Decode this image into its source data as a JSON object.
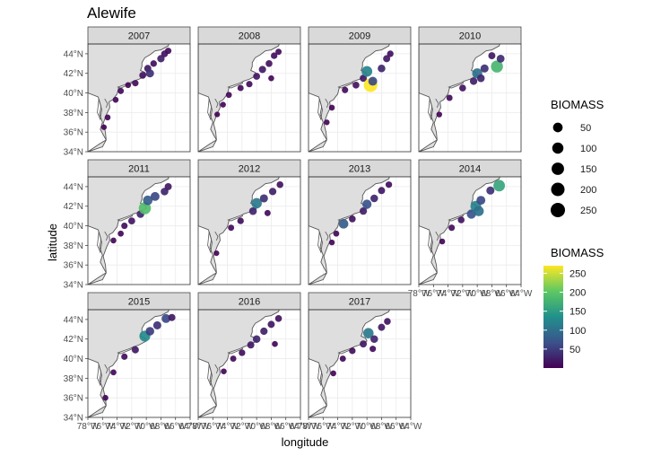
{
  "chart_data": {
    "type": "scatter",
    "title": "Alewife",
    "xlabel": "longitude",
    "ylabel": "latitude",
    "xlim": [
      -78,
      -64
    ],
    "ylim": [
      34,
      45
    ],
    "x_ticks": [
      "78°W",
      "76°W",
      "74°W",
      "72°W",
      "70°W",
      "68°W",
      "66°W",
      "64°W"
    ],
    "x_tick_values": [
      -78,
      -76,
      -74,
      -72,
      -70,
      -68,
      -66,
      -64
    ],
    "y_ticks": [
      "34°N",
      "36°N",
      "38°N",
      "40°N",
      "42°N",
      "44°N"
    ],
    "y_tick_values": [
      34,
      36,
      38,
      40,
      42,
      44
    ],
    "grid": true,
    "facet_by": "year",
    "panels": [
      {
        "label": "2007",
        "points": [
          [
            -74.2,
            39.3,
            5
          ],
          [
            -73.5,
            40.2,
            8
          ],
          [
            -72.5,
            40.8,
            5
          ],
          [
            -71.5,
            41.0,
            10
          ],
          [
            -70.5,
            41.8,
            15
          ],
          [
            -69.8,
            42.5,
            20
          ],
          [
            -69.0,
            43.0,
            12
          ],
          [
            -68.0,
            43.5,
            25
          ],
          [
            -67.5,
            44.0,
            15
          ],
          [
            -67.0,
            44.3,
            10
          ],
          [
            -75.3,
            37.5,
            5
          ],
          [
            -75.8,
            36.5,
            3
          ],
          [
            -69.5,
            42.0,
            40
          ]
        ]
      },
      {
        "label": "2008",
        "points": [
          [
            -74.6,
            38.8,
            4
          ],
          [
            -73.8,
            39.8,
            6
          ],
          [
            -72.2,
            40.5,
            8
          ],
          [
            -71.0,
            40.9,
            10
          ],
          [
            -70.0,
            41.7,
            18
          ],
          [
            -69.2,
            42.4,
            22
          ],
          [
            -68.3,
            43.0,
            15
          ],
          [
            -67.6,
            43.8,
            12
          ],
          [
            -67.0,
            44.2,
            8
          ],
          [
            -75.4,
            37.8,
            3
          ],
          [
            -68.0,
            41.5,
            5
          ]
        ]
      },
      {
        "label": "2009",
        "points": [
          [
            -74.8,
            38.5,
            5
          ],
          [
            -73.0,
            40.3,
            10
          ],
          [
            -71.5,
            40.8,
            15
          ],
          [
            -70.5,
            41.5,
            20
          ],
          [
            -70.0,
            42.2,
            120
          ],
          [
            -69.5,
            40.8,
            270
          ],
          [
            -69.2,
            41.2,
            60
          ],
          [
            -68.0,
            42.5,
            30
          ],
          [
            -67.3,
            43.5,
            20
          ],
          [
            -66.8,
            44.0,
            12
          ],
          [
            -75.5,
            37.0,
            4
          ]
        ]
      },
      {
        "label": "2010",
        "points": [
          [
            -75.2,
            37.8,
            4
          ],
          [
            -73.8,
            39.5,
            8
          ],
          [
            -72.0,
            40.5,
            15
          ],
          [
            -70.5,
            41.2,
            25
          ],
          [
            -70.0,
            42.0,
            100
          ],
          [
            -69.0,
            42.5,
            40
          ],
          [
            -67.3,
            42.7,
            180
          ],
          [
            -66.8,
            43.5,
            35
          ],
          [
            -68.0,
            43.8,
            20
          ],
          [
            -69.5,
            41.5,
            30
          ]
        ]
      },
      {
        "label": "2011",
        "points": [
          [
            -74.5,
            38.5,
            5
          ],
          [
            -73.0,
            40.0,
            10
          ],
          [
            -72.0,
            40.5,
            18
          ],
          [
            -70.8,
            41.2,
            30
          ],
          [
            -70.2,
            41.8,
            190
          ],
          [
            -69.8,
            42.6,
            80
          ],
          [
            -68.8,
            43.0,
            60
          ],
          [
            -67.5,
            43.5,
            30
          ],
          [
            -67.0,
            44.0,
            20
          ],
          [
            -73.5,
            39.2,
            6
          ]
        ]
      },
      {
        "label": "2012",
        "points": [
          [
            -75.5,
            37.2,
            3
          ],
          [
            -73.5,
            39.8,
            8
          ],
          [
            -72.2,
            40.5,
            12
          ],
          [
            -70.5,
            41.5,
            30
          ],
          [
            -70.0,
            42.3,
            110
          ],
          [
            -69.0,
            42.8,
            40
          ],
          [
            -67.8,
            43.5,
            25
          ],
          [
            -66.8,
            44.2,
            15
          ],
          [
            -68.5,
            41.3,
            8
          ]
        ]
      },
      {
        "label": "2013",
        "points": [
          [
            -74.2,
            39.2,
            6
          ],
          [
            -73.2,
            40.2,
            80
          ],
          [
            -72.0,
            40.7,
            15
          ],
          [
            -70.5,
            41.5,
            25
          ],
          [
            -70.0,
            42.2,
            70
          ],
          [
            -69.0,
            42.8,
            30
          ],
          [
            -68.0,
            43.6,
            20
          ],
          [
            -67.0,
            44.2,
            12
          ],
          [
            -74.8,
            38.3,
            4
          ]
        ]
      },
      {
        "label": "2014",
        "points": [
          [
            -74.8,
            38.4,
            5
          ],
          [
            -73.5,
            39.8,
            10
          ],
          [
            -72.2,
            40.6,
            15
          ],
          [
            -70.8,
            41.2,
            70
          ],
          [
            -70.2,
            42.0,
            120
          ],
          [
            -69.5,
            42.6,
            60
          ],
          [
            -68.2,
            43.6,
            40
          ],
          [
            -67.0,
            44.1,
            160
          ],
          [
            -69.8,
            41.5,
            100
          ]
        ]
      },
      {
        "label": "2015",
        "points": [
          [
            -75.6,
            36.0,
            5
          ],
          [
            -74.5,
            38.6,
            6
          ],
          [
            -73.0,
            40.2,
            10
          ],
          [
            -71.5,
            40.9,
            20
          ],
          [
            -70.2,
            42.3,
            130
          ],
          [
            -69.5,
            42.8,
            50
          ],
          [
            -68.5,
            43.4,
            40
          ],
          [
            -67.3,
            44.1,
            60
          ],
          [
            -66.5,
            44.2,
            20
          ]
        ]
      },
      {
        "label": "2016",
        "points": [
          [
            -74.5,
            38.7,
            5
          ],
          [
            -73.2,
            40.0,
            8
          ],
          [
            -72.0,
            40.6,
            12
          ],
          [
            -70.8,
            41.4,
            20
          ],
          [
            -70.0,
            42.0,
            30
          ],
          [
            -69.0,
            42.8,
            25
          ],
          [
            -68.0,
            43.5,
            20
          ],
          [
            -67.0,
            44.1,
            15
          ],
          [
            -67.5,
            41.5,
            6
          ]
        ]
      },
      {
        "label": "2017",
        "points": [
          [
            -74.6,
            38.5,
            5
          ],
          [
            -73.3,
            40.0,
            8
          ],
          [
            -72.0,
            40.8,
            12
          ],
          [
            -70.5,
            41.5,
            20
          ],
          [
            -69.8,
            42.6,
            110
          ],
          [
            -69.0,
            42.0,
            30
          ],
          [
            -68.0,
            43.2,
            20
          ],
          [
            -67.2,
            43.8,
            15
          ],
          [
            -69.2,
            41.0,
            10
          ]
        ]
      }
    ],
    "legend_size": {
      "title": "BIOMASS",
      "breaks": [
        50,
        100,
        150,
        200,
        250
      ]
    },
    "legend_color": {
      "title": "BIOMASS",
      "breaks": [
        50,
        100,
        150,
        200,
        250
      ],
      "range": [
        0,
        270
      ],
      "colors": [
        "#440154",
        "#3b528b",
        "#21908c",
        "#5dc863",
        "#fde725"
      ]
    }
  }
}
